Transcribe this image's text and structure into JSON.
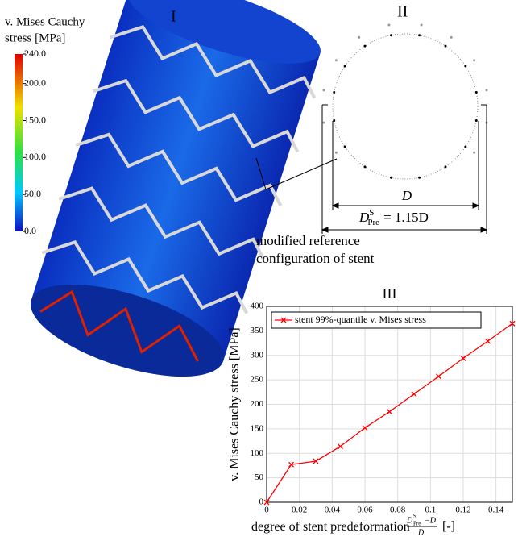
{
  "panels": {
    "first": "I",
    "second": "II"
  },
  "colorbar": {
    "title": [
      "v. Mises Cauchy",
      "stress [MPa]"
    ],
    "clim": [
      0,
      240
    ],
    "ticks": [
      {
        "value": 240,
        "label": "240.0"
      },
      {
        "value": 200,
        "label": "200.0"
      },
      {
        "value": 150,
        "label": "150.0"
      },
      {
        "value": 100,
        "label": "100.0"
      },
      {
        "value": 50,
        "label": "50.0"
      },
      {
        "value": 0,
        "label": "0.0"
      }
    ]
  },
  "diagram": {
    "inner_dimension": "D",
    "outer_dimension": {
      "symbol": "D",
      "sup": "S",
      "sub": "Pre",
      "rest": "= 1.15D"
    }
  },
  "annotation": [
    "modified reference",
    "configuration of stent"
  ],
  "chart_data": {
    "type": "line",
    "title": "III",
    "ylabel": "v. Mises Cauchy stress [MPa]",
    "xlabel": {
      "text": "degree of stent predeformation",
      "numerator": "D",
      "sup": "S",
      "sub": "Pre",
      "minus": "−D",
      "denominator": "D",
      "unit": "[-]"
    },
    "x": [
      0,
      0.015,
      0.03,
      0.045,
      0.06,
      0.075,
      0.09,
      0.105,
      0.12,
      0.135,
      0.15
    ],
    "series": [
      {
        "name": "stent 99%-quantile v. Mises stress",
        "color": "#ff0000",
        "values": [
          0,
          77,
          84,
          114,
          152,
          185,
          221,
          257,
          294,
          329,
          365
        ]
      }
    ],
    "xlim": [
      0,
      0.15
    ],
    "xticks": [
      0,
      0.02,
      0.04,
      0.06,
      0.08,
      0.1,
      0.12,
      0.14
    ],
    "ylim": [
      0,
      400
    ],
    "yticks": [
      0,
      50,
      100,
      150,
      200,
      250,
      300,
      350,
      400
    ],
    "grid": true,
    "legend": "top-left",
    "marker": "x"
  }
}
